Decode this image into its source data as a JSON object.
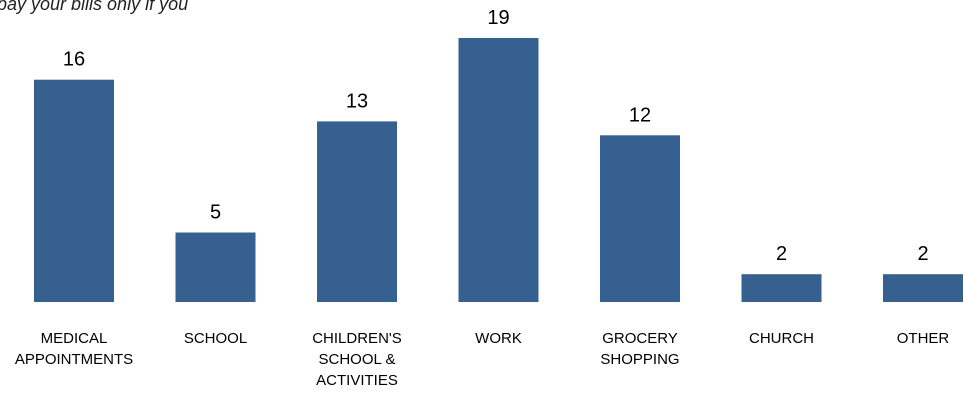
{
  "chart_data": {
    "type": "bar",
    "title": "pay your bills only if you",
    "categories": [
      [
        "MEDICAL",
        "APPOINTMENTS"
      ],
      [
        "SCHOOL"
      ],
      [
        "CHILDREN'S",
        "SCHOOL &",
        "ACTIVITIES"
      ],
      [
        "WORK"
      ],
      [
        "GROCERY",
        "SHOPPING"
      ],
      [
        "CHURCH"
      ],
      [
        "OTHER"
      ]
    ],
    "values": [
      16,
      5,
      13,
      19,
      12,
      2,
      2
    ],
    "ylim": [
      0,
      19
    ],
    "grid": false,
    "legend": "none",
    "bar_color": "#36608F"
  }
}
